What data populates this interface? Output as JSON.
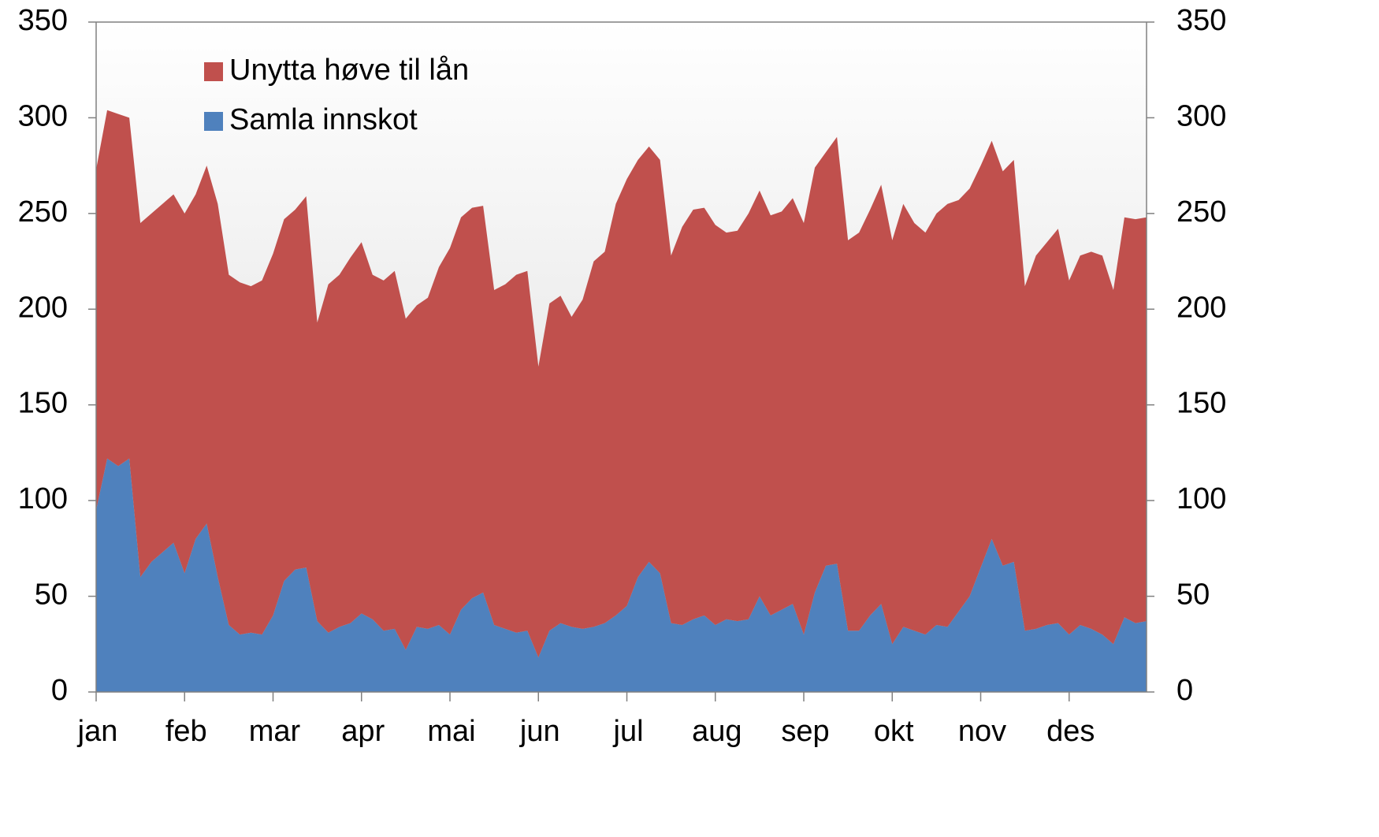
{
  "chart_data": {
    "type": "stacked_area",
    "categories": [
      "jan",
      null,
      null,
      null,
      null,
      null,
      null,
      null,
      "feb",
      null,
      null,
      null,
      null,
      null,
      null,
      null,
      "mar",
      null,
      null,
      null,
      null,
      null,
      null,
      null,
      "apr",
      null,
      null,
      null,
      null,
      null,
      null,
      null,
      "mai",
      null,
      null,
      null,
      null,
      null,
      null,
      null,
      "jun",
      null,
      null,
      null,
      null,
      null,
      null,
      null,
      "jul",
      null,
      null,
      null,
      null,
      null,
      null,
      null,
      "aug",
      null,
      null,
      null,
      null,
      null,
      null,
      null,
      "sep",
      null,
      null,
      null,
      null,
      null,
      null,
      null,
      "okt",
      null,
      null,
      null,
      null,
      null,
      null,
      null,
      "nov",
      null,
      null,
      null,
      null,
      null,
      null,
      null,
      "des",
      null,
      null,
      null,
      null,
      null,
      null,
      null
    ],
    "series": [
      {
        "name": "Samla innskot",
        "color": "#4f81bd",
        "values": [
          95,
          122,
          118,
          122,
          60,
          68,
          73,
          78,
          62,
          80,
          88,
          60,
          35,
          30,
          31,
          30,
          40,
          58,
          64,
          65,
          37,
          31,
          34,
          36,
          41,
          38,
          32,
          33,
          22,
          34,
          33,
          35,
          30,
          43,
          49,
          52,
          35,
          33,
          31,
          32,
          18,
          32,
          36,
          34,
          33,
          34,
          36,
          40,
          45,
          60,
          68,
          62,
          36,
          35,
          38,
          40,
          35,
          38,
          37,
          38,
          50,
          40,
          43,
          46,
          30,
          52,
          66,
          67,
          32,
          32,
          40,
          46,
          25,
          34,
          32,
          30,
          35,
          34,
          42,
          50,
          65,
          80,
          66,
          68,
          32,
          33,
          35,
          36,
          30,
          35,
          33,
          30,
          25,
          39,
          36,
          37
        ]
      },
      {
        "name": "Unytta høve til lån",
        "color": "#c0504d",
        "values": [
          178,
          182,
          184,
          178,
          185,
          182,
          182,
          182,
          188,
          180,
          187,
          195,
          183,
          184,
          181,
          185,
          189,
          189,
          188,
          194,
          156,
          182,
          184,
          191,
          194,
          180,
          183,
          187,
          173,
          168,
          173,
          187,
          202,
          205,
          204,
          202,
          175,
          180,
          187,
          188,
          152,
          171,
          171,
          162,
          172,
          191,
          194,
          215,
          223,
          218,
          217,
          216,
          192,
          208,
          214,
          213,
          209,
          202,
          204,
          212,
          212,
          209,
          208,
          212,
          215,
          222,
          216,
          223,
          204,
          208,
          212,
          219,
          211,
          221,
          213,
          210,
          215,
          221,
          215,
          213,
          210,
          208,
          206,
          210,
          180,
          195,
          200,
          206,
          185,
          193,
          197,
          198,
          185,
          209,
          211,
          211
        ]
      }
    ],
    "ylim": [
      0,
      350
    ],
    "yticks": [
      0,
      50,
      100,
      150,
      200,
      250,
      300,
      350
    ],
    "legend": "upper left"
  }
}
